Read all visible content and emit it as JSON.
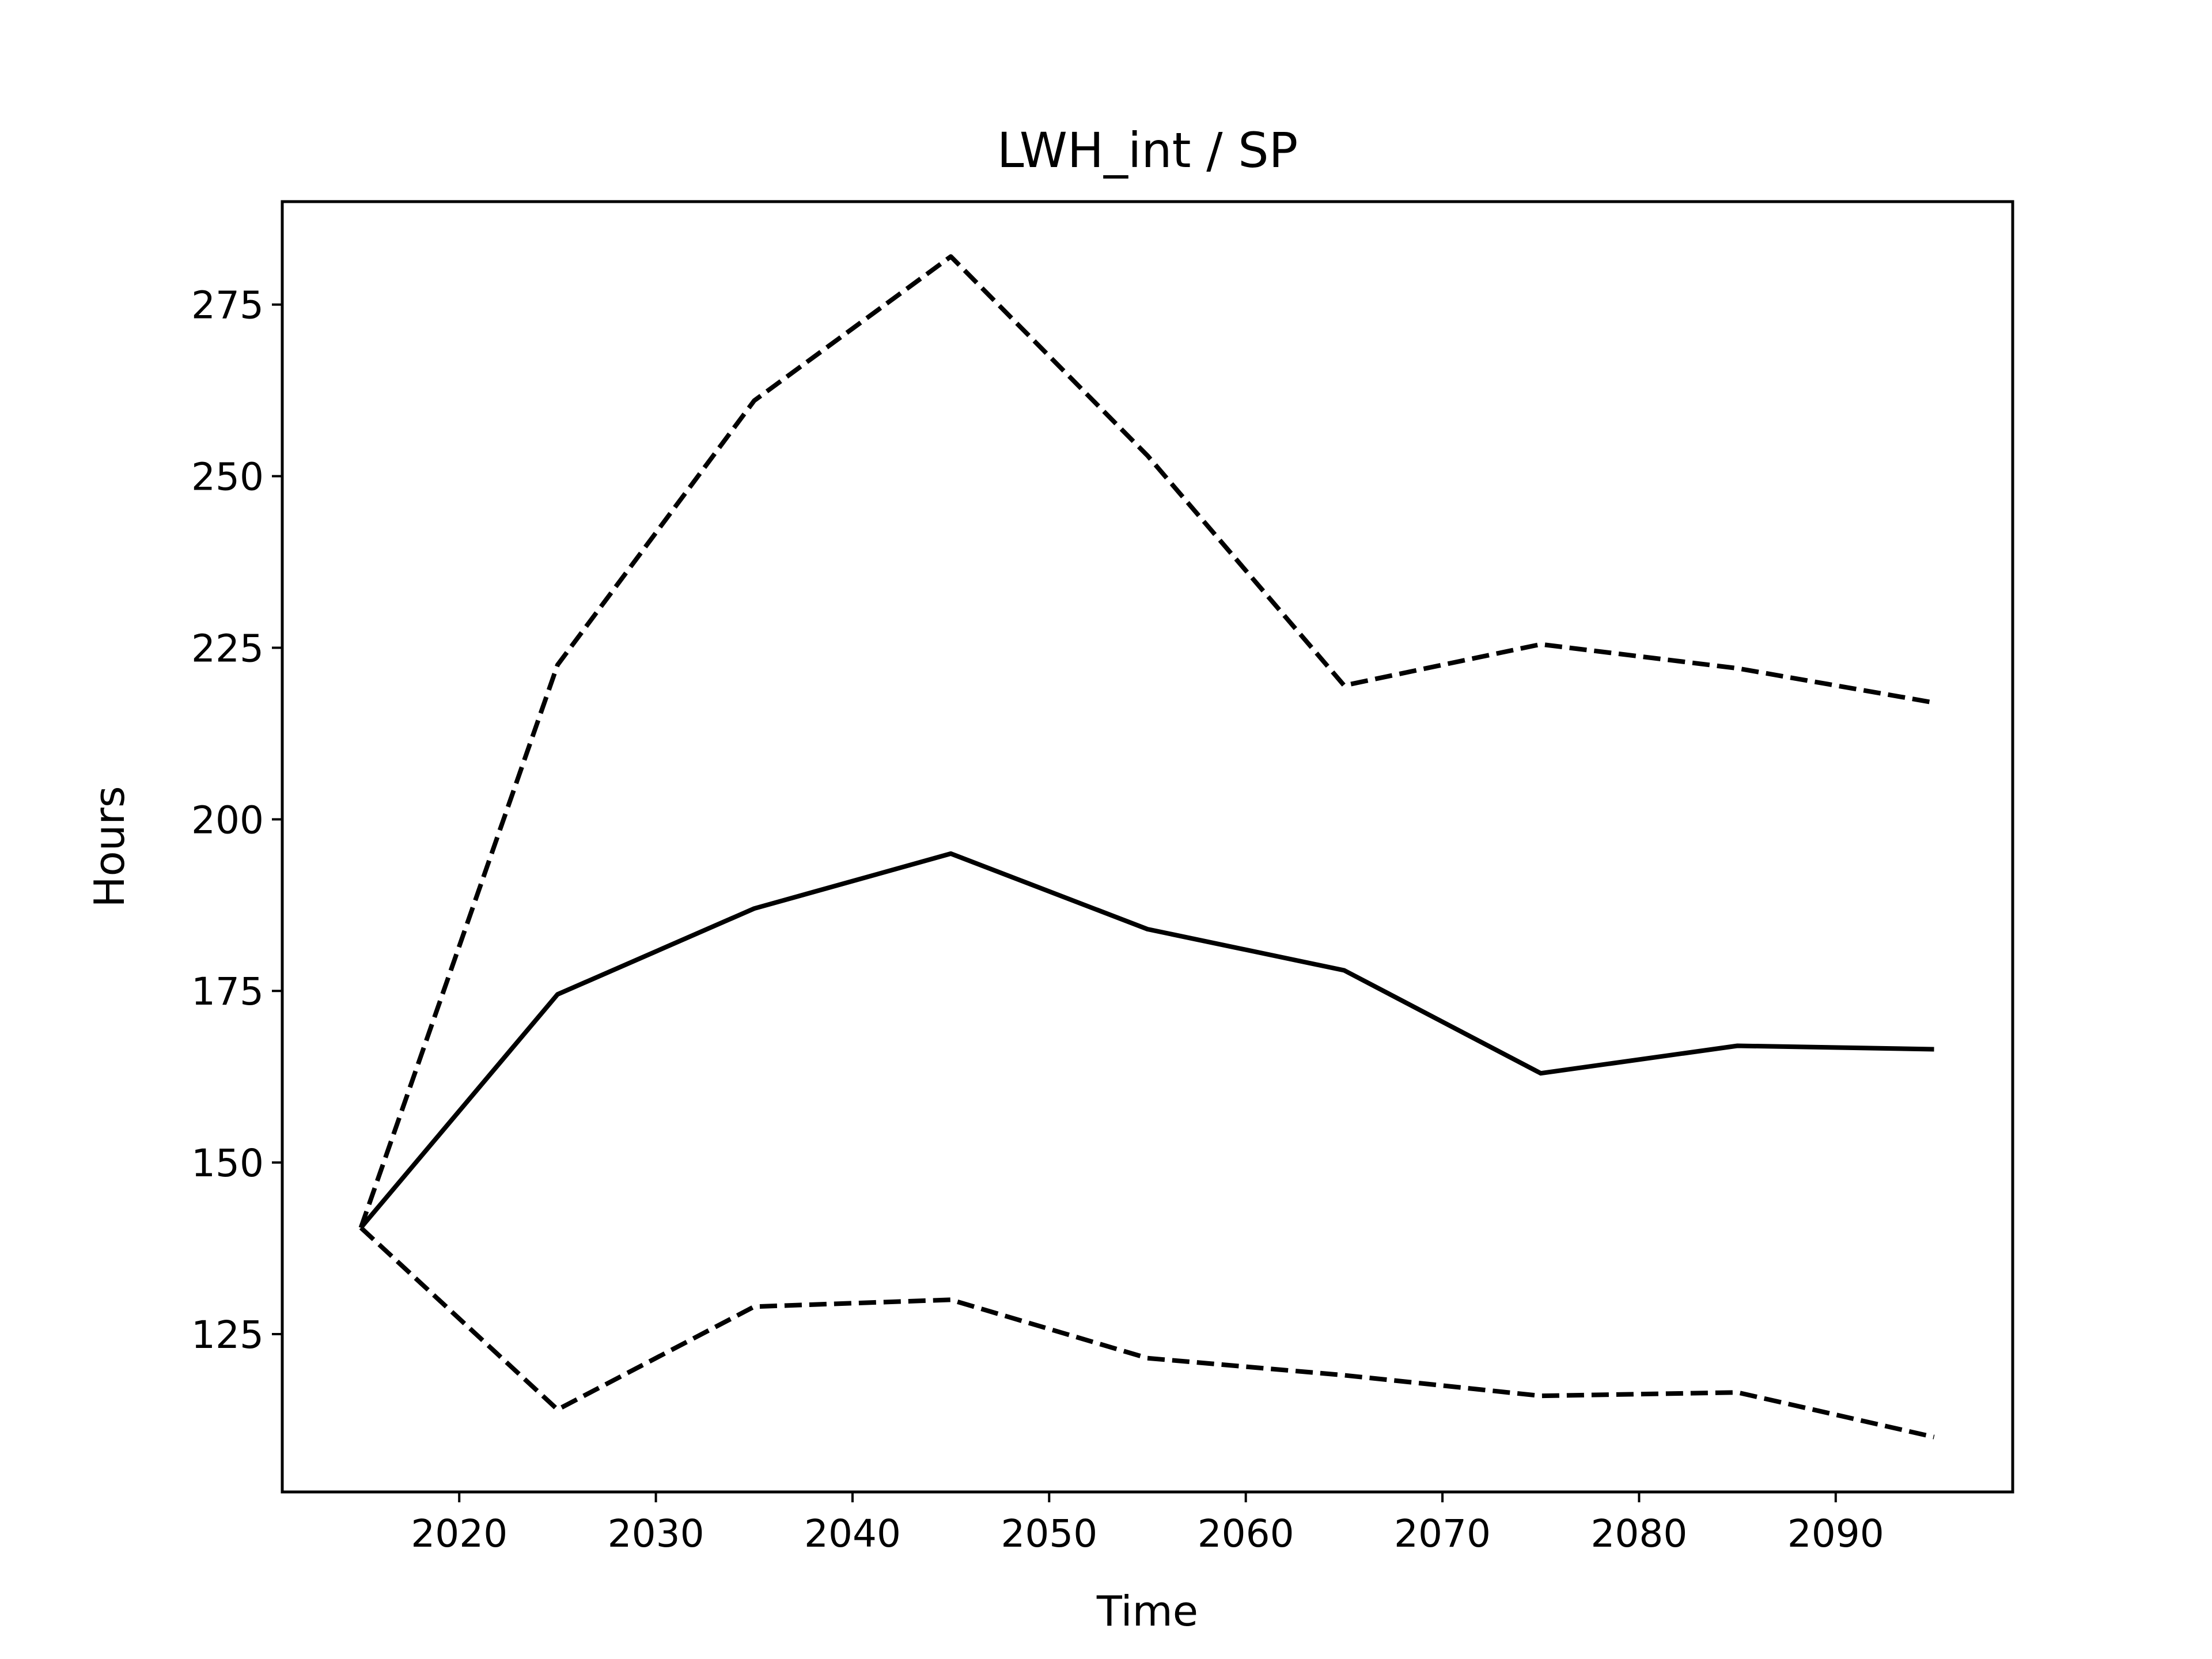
{
  "chart_data": {
    "type": "line",
    "title": "LWH_int / SP",
    "xlabel": "Time",
    "ylabel": "Hours",
    "xlim": [
      2011,
      2099
    ],
    "ylim": [
      102,
      290
    ],
    "xticks": [
      2020,
      2030,
      2040,
      2050,
      2060,
      2070,
      2080,
      2090
    ],
    "yticks": [
      125,
      150,
      175,
      200,
      225,
      250,
      275
    ],
    "grid": false,
    "legend": "none",
    "line_color": "#000000",
    "x": [
      2015,
      2025,
      2035,
      2045,
      2055,
      2065,
      2075,
      2085,
      2095
    ],
    "series": [
      {
        "style": "dashed",
        "values": [
          140.5,
          222.5,
          261,
          282,
          253,
          219.5,
          225.5,
          222,
          217
        ]
      },
      {
        "style": "solid",
        "values": [
          140.5,
          174.5,
          187,
          195,
          184,
          178,
          163,
          167,
          166.5
        ]
      },
      {
        "style": "dashed",
        "values": [
          140.5,
          114,
          129,
          130,
          121.5,
          119,
          116,
          116.5,
          110
        ]
      }
    ]
  }
}
